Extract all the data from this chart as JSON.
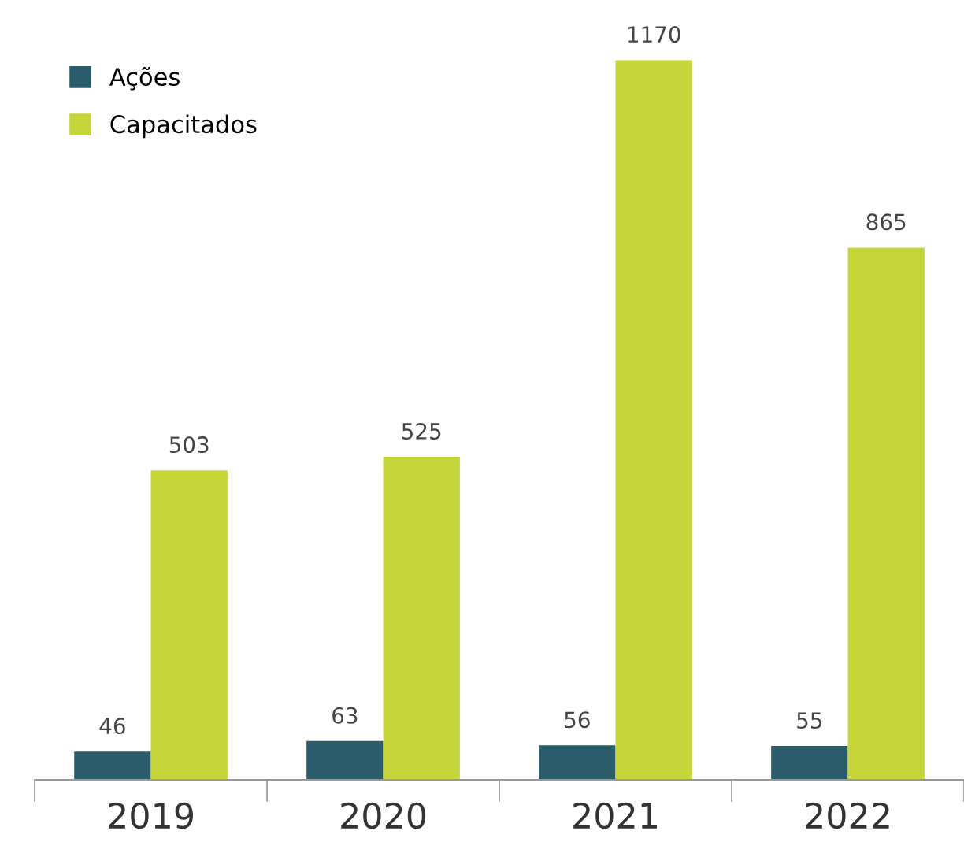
{
  "chart_data": {
    "type": "bar",
    "categories": [
      "2019",
      "2020",
      "2021",
      "2022"
    ],
    "series": [
      {
        "name": "Ações",
        "color": "#2b5c6b",
        "values": [
          46,
          63,
          56,
          55
        ]
      },
      {
        "name": "Capacitados",
        "color": "#c6d63a",
        "values": [
          503,
          525,
          1170,
          865
        ]
      }
    ],
    "data_labels": true,
    "legend": "top left",
    "grid": false
  }
}
